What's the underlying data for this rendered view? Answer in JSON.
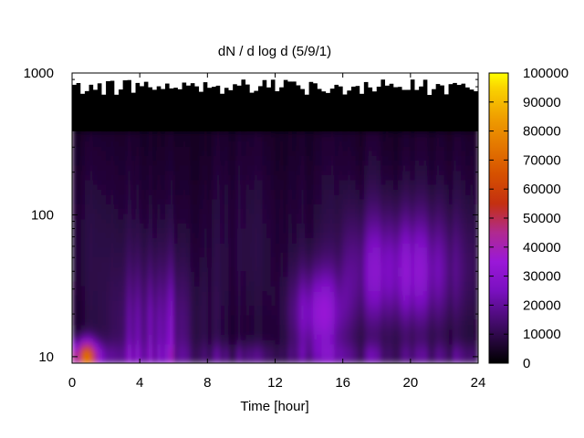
{
  "chart_data": {
    "type": "heatmap",
    "title": "dN / d log d (5/9/1)",
    "xlabel": "Time [hour]",
    "ylabel": "",
    "xlim": [
      0,
      24
    ],
    "ylim": [
      9,
      1000
    ],
    "yscale": "log",
    "x_ticks": [
      0,
      4,
      8,
      12,
      16,
      20,
      24
    ],
    "y_ticks": [
      10,
      100,
      1000
    ],
    "colorbar": {
      "range": [
        0,
        100000
      ],
      "ticks": [
        0,
        10000,
        20000,
        30000,
        40000,
        50000,
        60000,
        70000,
        80000,
        90000,
        100000
      ],
      "palette": "black-purple-red-orange-yellow"
    },
    "data_summary": {
      "upper_cutoff_diameter": 400,
      "missing_region": "white above ~700-900 across all times",
      "background_level": 8000,
      "features": [
        {
          "time_range": [
            16.5,
            22.5
          ],
          "diameter_range": [
            25,
            80
          ],
          "level": 22000
        },
        {
          "time_range": [
            13,
            16
          ],
          "diameter_range": [
            12,
            40
          ],
          "level": 25000
        },
        {
          "time_range": [
            0,
            1.2
          ],
          "diameter_range": [
            9,
            14
          ],
          "level": 55000
        },
        {
          "time_range": [
            3.5,
            7.5
          ],
          "diameter_range": [
            9,
            60
          ],
          "level": 20000
        }
      ]
    }
  }
}
